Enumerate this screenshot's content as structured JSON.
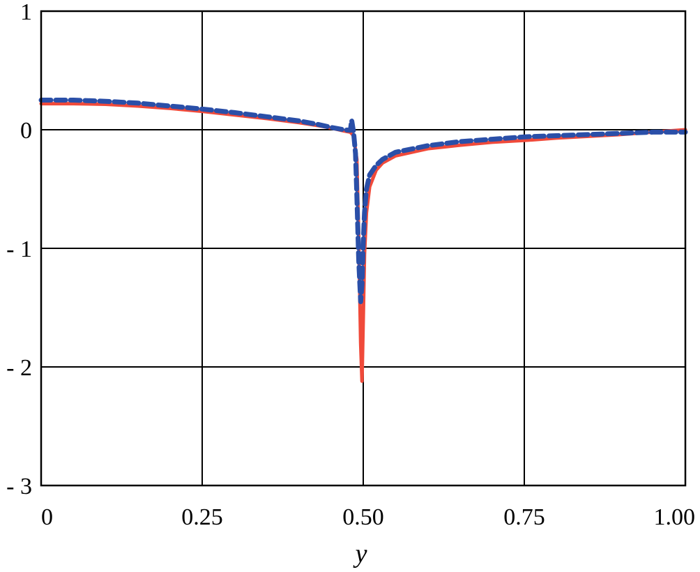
{
  "chart_data": {
    "type": "line",
    "title": "",
    "xlabel": "y",
    "ylabel": "",
    "xlim": [
      0,
      1.0
    ],
    "ylim": [
      -3,
      1
    ],
    "grid": true,
    "x_ticks": [
      0,
      0.25,
      0.5,
      0.75,
      1.0
    ],
    "x_tick_labels": [
      "0",
      "0.25",
      "0.50",
      "0.75",
      "1.00"
    ],
    "y_ticks": [
      1,
      0,
      -1,
      -2,
      -3
    ],
    "y_tick_labels": [
      "1",
      "0",
      "- 1",
      "- 2",
      "- 3"
    ],
    "series": [
      {
        "style": "solid",
        "color": "#f04a3a",
        "x": [
          0,
          0.05,
          0.1,
          0.15,
          0.2,
          0.25,
          0.3,
          0.35,
          0.4,
          0.43,
          0.45,
          0.47,
          0.48,
          0.485,
          0.49,
          0.493,
          0.496,
          0.498,
          0.5,
          0.502,
          0.505,
          0.51,
          0.52,
          0.53,
          0.55,
          0.6,
          0.65,
          0.7,
          0.75,
          0.8,
          0.85,
          0.9,
          0.95,
          1.0
        ],
        "y": [
          0.22,
          0.22,
          0.215,
          0.2,
          0.18,
          0.155,
          0.125,
          0.095,
          0.06,
          0.035,
          0.015,
          -0.01,
          -0.02,
          -0.05,
          -0.25,
          -0.9,
          -1.8,
          -2.12,
          -1.6,
          -1.05,
          -0.7,
          -0.48,
          -0.34,
          -0.28,
          -0.22,
          -0.16,
          -0.13,
          -0.105,
          -0.09,
          -0.07,
          -0.055,
          -0.04,
          -0.02,
          0.0
        ]
      },
      {
        "style": "dashed",
        "color": "#2a4fa8",
        "x": [
          0,
          0.05,
          0.1,
          0.15,
          0.2,
          0.25,
          0.3,
          0.35,
          0.4,
          0.43,
          0.45,
          0.47,
          0.48,
          0.482,
          0.485,
          0.488,
          0.49,
          0.493,
          0.496,
          0.498,
          0.5,
          0.502,
          0.505,
          0.51,
          0.52,
          0.53,
          0.55,
          0.6,
          0.65,
          0.7,
          0.75,
          0.8,
          0.85,
          0.9,
          0.95,
          1.0
        ],
        "y": [
          0.25,
          0.25,
          0.24,
          0.225,
          0.2,
          0.175,
          0.145,
          0.11,
          0.075,
          0.045,
          0.02,
          0.0,
          -0.005,
          0.08,
          -0.02,
          -0.2,
          -0.55,
          -1.1,
          -1.45,
          -1.3,
          -0.95,
          -0.7,
          -0.5,
          -0.38,
          -0.3,
          -0.25,
          -0.19,
          -0.135,
          -0.1,
          -0.08,
          -0.06,
          -0.05,
          -0.04,
          -0.03,
          -0.02,
          -0.02
        ]
      }
    ]
  }
}
